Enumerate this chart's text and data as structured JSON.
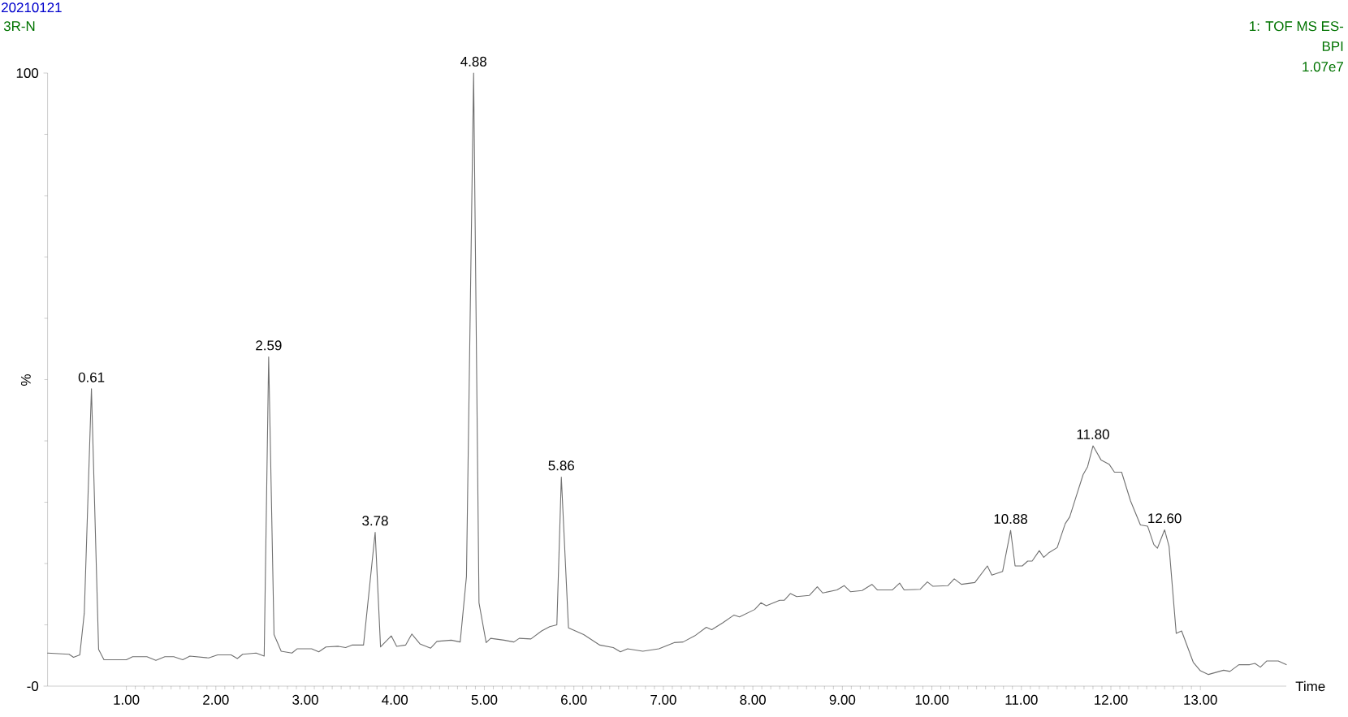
{
  "chart_data": {
    "type": "line",
    "title": "20210121",
    "subtitle": "3R-N",
    "xlabel": "Time",
    "ylabel": "%",
    "color": "#707070",
    "marker": "none",
    "line_style": "solid",
    "grid": false,
    "xlim": [
      0.12,
      13.96
    ],
    "ylim": [
      0,
      100
    ],
    "xticks": [
      {
        "value": 1,
        "label": "1.00"
      },
      {
        "value": 2,
        "label": "2.00"
      },
      {
        "value": 3,
        "label": "3.00"
      },
      {
        "value": 4,
        "label": "4.00"
      },
      {
        "value": 5,
        "label": "5.00"
      },
      {
        "value": 6,
        "label": "6.00"
      },
      {
        "value": 7,
        "label": "7.00"
      },
      {
        "value": 8,
        "label": "8.00"
      },
      {
        "value": 9,
        "label": "9.00"
      },
      {
        "value": 10,
        "label": "10.00"
      },
      {
        "value": 11,
        "label": "11.00"
      },
      {
        "value": 12,
        "label": "12.00"
      },
      {
        "value": 13,
        "label": "13.00"
      }
    ],
    "yticks": [
      {
        "value": 0,
        "label": "-0"
      },
      100
    ],
    "x": [
      0.12,
      0.36,
      0.41,
      0.48,
      0.53,
      0.61,
      0.69,
      0.75,
      1.0,
      1.07,
      1.23,
      1.33,
      1.43,
      1.53,
      1.63,
      1.71,
      1.92,
      2.02,
      2.17,
      2.24,
      2.3,
      2.45,
      2.54,
      2.59,
      2.65,
      2.73,
      2.85,
      2.91,
      3.07,
      3.15,
      3.23,
      3.37,
      3.45,
      3.52,
      3.65,
      3.78,
      3.84,
      3.96,
      4.02,
      4.12,
      4.19,
      4.28,
      4.4,
      4.47,
      4.63,
      4.73,
      4.8,
      4.88,
      4.94,
      5.02,
      5.07,
      5.22,
      5.33,
      5.39,
      5.52,
      5.64,
      5.73,
      5.81,
      5.86,
      5.94,
      6.11,
      6.29,
      6.44,
      6.52,
      6.6,
      6.77,
      6.95,
      7.12,
      7.22,
      7.35,
      7.48,
      7.54,
      7.66,
      7.79,
      7.85,
      8.02,
      8.09,
      8.15,
      8.3,
      8.35,
      8.42,
      8.49,
      8.63,
      8.72,
      8.78,
      8.94,
      9.02,
      9.09,
      9.22,
      9.33,
      9.39,
      9.56,
      9.64,
      9.69,
      9.87,
      9.95,
      10.01,
      10.18,
      10.25,
      10.33,
      10.48,
      10.62,
      10.67,
      10.79,
      10.88,
      10.93,
      11.01,
      11.07,
      11.12,
      11.2,
      11.25,
      11.31,
      11.4,
      11.49,
      11.54,
      11.62,
      11.69,
      11.74,
      11.8,
      11.89,
      11.98,
      12.04,
      12.12,
      12.22,
      12.33,
      12.41,
      12.48,
      12.52,
      12.6,
      12.65,
      12.73,
      12.79,
      12.92,
      13.0,
      13.09,
      13.26,
      13.33,
      13.43,
      13.55,
      13.61,
      13.67,
      13.74,
      13.87,
      13.96
    ],
    "values": [
      5.4,
      5.2,
      4.7,
      5.1,
      11.9,
      48.5,
      6.0,
      4.3,
      4.3,
      4.8,
      4.8,
      4.2,
      4.8,
      4.8,
      4.3,
      4.9,
      4.6,
      5.1,
      5.1,
      4.5,
      5.2,
      5.4,
      4.9,
      53.7,
      8.4,
      5.7,
      5.4,
      6.1,
      6.1,
      5.6,
      6.4,
      6.5,
      6.3,
      6.7,
      6.7,
      25.1,
      6.4,
      8.2,
      6.5,
      6.7,
      8.5,
      6.9,
      6.2,
      7.3,
      7.5,
      7.2,
      17.9,
      100,
      13.6,
      7.1,
      7.8,
      7.5,
      7.2,
      7.8,
      7.7,
      9.0,
      9.7,
      10.0,
      34.1,
      9.5,
      8.4,
      6.7,
      6.3,
      5.6,
      6.1,
      5.7,
      6.1,
      7.1,
      7.2,
      8.2,
      9.6,
      9.2,
      10.3,
      11.6,
      11.3,
      12.5,
      13.6,
      13.1,
      14.0,
      14.0,
      15.1,
      14.6,
      14.8,
      16.2,
      15.2,
      15.7,
      16.4,
      15.4,
      15.6,
      16.6,
      15.7,
      15.7,
      16.8,
      15.7,
      15.8,
      17.0,
      16.3,
      16.4,
      17.5,
      16.6,
      16.9,
      19.6,
      18.1,
      18.7,
      25.4,
      19.6,
      19.6,
      20.4,
      20.4,
      22.1,
      21.0,
      21.8,
      22.6,
      26.5,
      27.6,
      31.3,
      34.5,
      35.8,
      39.2,
      36.9,
      36.2,
      34.9,
      34.9,
      30.2,
      26.3,
      26.1,
      23.1,
      22.5,
      25.5,
      22.8,
      8.6,
      9.0,
      3.9,
      2.5,
      1.9,
      2.6,
      2.4,
      3.5,
      3.5,
      3.7,
      3.1,
      4.1,
      4.1,
      3.5
    ],
    "annotations": [
      {
        "text": "0.61",
        "x": 0.61,
        "y": 48.5
      },
      {
        "text": "2.59",
        "x": 2.59,
        "y": 53.7
      },
      {
        "text": "3.78",
        "x": 3.78,
        "y": 25.1
      },
      {
        "text": "4.88",
        "x": 4.88,
        "y": 100
      },
      {
        "text": "5.86",
        "x": 5.86,
        "y": 34.1
      },
      {
        "text": "10.88",
        "x": 10.88,
        "y": 25.4
      },
      {
        "text": "11.80",
        "x": 11.8,
        "y": 39.2
      },
      {
        "text": "12.60",
        "x": 12.6,
        "y": 25.5
      },
      "1: TOF MS ES-",
      "BPI",
      "1.07e7"
    ]
  }
}
